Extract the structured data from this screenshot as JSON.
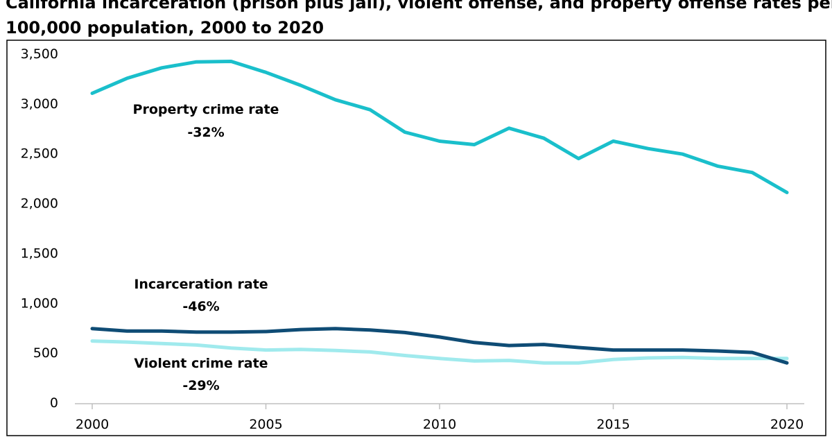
{
  "chart_data": {
    "type": "line",
    "title_line1": "California incarceration (prison plus jail), violent offense, and property offense rates per",
    "title_line2": "100,000 population, 2000 to 2020",
    "xlabel": "",
    "ylabel": "",
    "x": [
      2000,
      2001,
      2002,
      2003,
      2004,
      2005,
      2006,
      2007,
      2008,
      2009,
      2010,
      2011,
      2012,
      2013,
      2014,
      2015,
      2016,
      2017,
      2018,
      2019,
      2020
    ],
    "xticks": [
      2000,
      2005,
      2010,
      2015,
      2020
    ],
    "xtick_labels": [
      "2000",
      "2005",
      "2010",
      "2015",
      "2020"
    ],
    "yticks": [
      0,
      500,
      1000,
      1500,
      2000,
      2500,
      3000,
      3500
    ],
    "ytick_labels": [
      "0",
      "500",
      "1,000",
      "1,500",
      "2,000",
      "2,500",
      "3,000",
      "3,500"
    ],
    "xlim": [
      2000,
      2020
    ],
    "ylim": [
      0,
      3500
    ],
    "grid": false,
    "series": [
      {
        "key": "property",
        "color": "#1ABFCB",
        "values": [
          3100,
          3250,
          3355,
          3415,
          3420,
          3310,
          3180,
          3035,
          2935,
          2710,
          2620,
          2585,
          2750,
          2650,
          2445,
          2620,
          2545,
          2490,
          2370,
          2305,
          2105
        ]
      },
      {
        "key": "incarceration",
        "color": "#0F4C75",
        "values": [
          740,
          715,
          715,
          705,
          705,
          710,
          730,
          740,
          725,
          700,
          655,
          600,
          570,
          580,
          550,
          525,
          525,
          525,
          515,
          500,
          395
        ]
      },
      {
        "key": "violent",
        "color": "#A0EAED",
        "values": [
          615,
          605,
          590,
          575,
          545,
          525,
          530,
          520,
          505,
          470,
          440,
          415,
          420,
          395,
          395,
          430,
          445,
          450,
          440,
          440,
          440
        ]
      }
    ],
    "annotations": [
      {
        "key": "property",
        "line1": "Property crime rate",
        "line2": "-32%"
      },
      {
        "key": "incarceration",
        "line1": "Incarceration rate",
        "line2": "-46%"
      },
      {
        "key": "violent",
        "line1": "Violent crime rate",
        "line2": "-29%"
      }
    ]
  }
}
